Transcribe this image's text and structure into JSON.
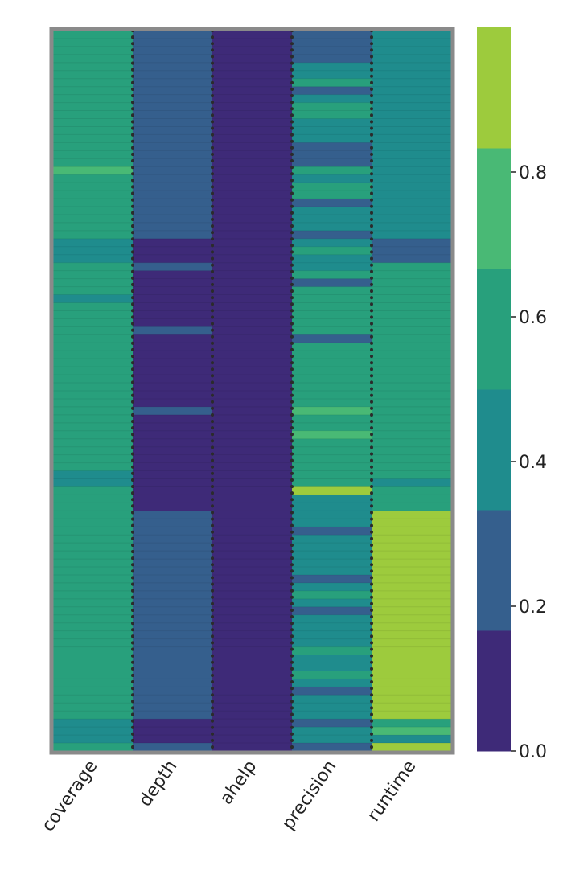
{
  "chart_data": {
    "type": "heatmap",
    "title": "",
    "xlabel": "",
    "ylabel": "",
    "columns": [
      "coverage",
      "depth",
      "ahelp",
      "precision",
      "runtime"
    ],
    "row_count": 90,
    "colorbar": {
      "min": 0.0,
      "max": 1.0,
      "ticks": [
        0.0,
        0.2,
        0.4,
        0.6,
        0.8
      ],
      "tick_labels": [
        "0.0",
        "0.2",
        "0.4",
        "0.6",
        "0.8"
      ],
      "levels": [
        "#3e2a78",
        "#355f8d",
        "#1f8c8d",
        "#28a07c",
        "#49b975",
        "#9dcb3d"
      ]
    },
    "segments": {
      "coverage": [
        [
          0,
          17,
          0.6
        ],
        [
          17,
          18,
          0.7
        ],
        [
          18,
          26,
          0.6
        ],
        [
          26,
          29,
          0.45
        ],
        [
          29,
          33,
          0.6
        ],
        [
          33,
          34,
          0.45
        ],
        [
          34,
          55,
          0.6
        ],
        [
          55,
          57,
          0.45
        ],
        [
          57,
          86,
          0.6
        ],
        [
          86,
          89,
          0.45
        ],
        [
          89,
          90,
          0.6
        ]
      ],
      "depth": [
        [
          0,
          26,
          0.2
        ],
        [
          26,
          29,
          0.1
        ],
        [
          29,
          30,
          0.2
        ],
        [
          30,
          37,
          0.1
        ],
        [
          37,
          38,
          0.2
        ],
        [
          38,
          47,
          0.1
        ],
        [
          47,
          48,
          0.2
        ],
        [
          48,
          60,
          0.1
        ],
        [
          60,
          86,
          0.2
        ],
        [
          86,
          89,
          0.1
        ],
        [
          89,
          90,
          0.2
        ]
      ],
      "ahelp": [
        [
          0,
          90,
          0.08
        ]
      ],
      "precision": [
        [
          0,
          4,
          0.3
        ],
        [
          4,
          6,
          0.45
        ],
        [
          6,
          7,
          0.6
        ],
        [
          7,
          8,
          0.3
        ],
        [
          8,
          9,
          0.45
        ],
        [
          9,
          11,
          0.65
        ],
        [
          11,
          14,
          0.45
        ],
        [
          14,
          17,
          0.3
        ],
        [
          17,
          18,
          0.6
        ],
        [
          18,
          19,
          0.4
        ],
        [
          19,
          20,
          0.6
        ],
        [
          20,
          21,
          0.65
        ],
        [
          21,
          22,
          0.3
        ],
        [
          22,
          25,
          0.45
        ],
        [
          25,
          26,
          0.2
        ],
        [
          26,
          27,
          0.45
        ],
        [
          27,
          28,
          0.65
        ],
        [
          28,
          30,
          0.45
        ],
        [
          30,
          31,
          0.65
        ],
        [
          31,
          32,
          0.3
        ],
        [
          32,
          33,
          0.6
        ],
        [
          33,
          38,
          0.6
        ],
        [
          38,
          39,
          0.3
        ],
        [
          39,
          47,
          0.6
        ],
        [
          47,
          48,
          0.7
        ],
        [
          48,
          50,
          0.6
        ],
        [
          50,
          51,
          0.7
        ],
        [
          51,
          57,
          0.6
        ],
        [
          57,
          58,
          0.9
        ],
        [
          58,
          62,
          0.45
        ],
        [
          62,
          63,
          0.2
        ],
        [
          63,
          68,
          0.45
        ],
        [
          68,
          69,
          0.2
        ],
        [
          69,
          70,
          0.45
        ],
        [
          70,
          71,
          0.6
        ],
        [
          71,
          72,
          0.45
        ],
        [
          72,
          73,
          0.2
        ],
        [
          73,
          77,
          0.45
        ],
        [
          77,
          78,
          0.6
        ],
        [
          78,
          80,
          0.45
        ],
        [
          80,
          81,
          0.6
        ],
        [
          81,
          82,
          0.45
        ],
        [
          82,
          83,
          0.2
        ],
        [
          83,
          86,
          0.45
        ],
        [
          86,
          87,
          0.3
        ],
        [
          87,
          89,
          0.45
        ],
        [
          89,
          90,
          0.3
        ]
      ],
      "runtime": [
        [
          0,
          26,
          0.4
        ],
        [
          26,
          29,
          0.2
        ],
        [
          29,
          56,
          0.6
        ],
        [
          56,
          57,
          0.4
        ],
        [
          57,
          60,
          0.6
        ],
        [
          60,
          86,
          0.9
        ],
        [
          86,
          87,
          0.6
        ],
        [
          87,
          88,
          0.7
        ],
        [
          88,
          89,
          0.45
        ],
        [
          89,
          90,
          0.9
        ]
      ]
    },
    "grid": false,
    "legend": "colorbar-right"
  }
}
